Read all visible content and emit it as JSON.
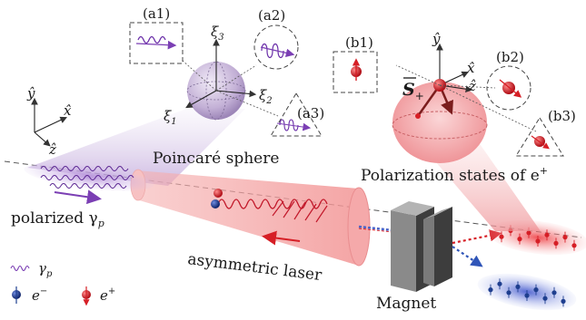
{
  "labels": {
    "poincare": "Poincaré sphere",
    "polarization": "Polarization states of e",
    "polarization_sup": "+",
    "polarized": "polarized γ",
    "polarized_sub": "p",
    "asym_laser": "asymmetric laser",
    "magnet": "Magnet",
    "legend_gamma": "γ",
    "legend_gamma_sub": "p",
    "legend_eminus": "e",
    "legend_eminus_sup": "−",
    "legend_eplus": "e",
    "legend_eplus_sup": "+"
  },
  "panels": {
    "a1": "(a1)",
    "a2": "(a2)",
    "a3": "(a3)",
    "b1": "(b1)",
    "b2": "(b2)",
    "b3": "(b3)"
  },
  "axes": {
    "xi1": "ξ",
    "xi1_sub": "1",
    "xi2": "ξ",
    "xi2_sub": "2",
    "xi3": "ξ",
    "xi3_sub": "3",
    "x": "x̂",
    "y": "ŷ",
    "z": "ẑ",
    "S": "S",
    "S_sub": "+"
  },
  "colors": {
    "positron": "#d61f26",
    "electron": "#1f3f8f",
    "gamma": "#7b3fb4",
    "laser": "#f08a8a",
    "sphere": "#b9a3cf",
    "ellipsoid": "#f4a3a6",
    "magnet": "#6e6e6e"
  }
}
